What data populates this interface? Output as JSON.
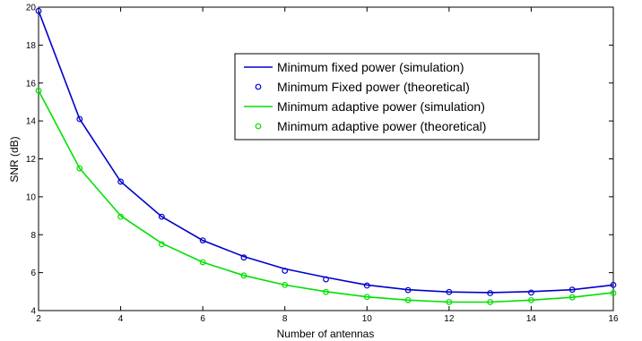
{
  "chart_data": {
    "type": "line",
    "xlabel": "Number of antennas",
    "ylabel": "SNR (dB)",
    "xlim": [
      2,
      16
    ],
    "ylim": [
      4,
      20
    ],
    "xticks": [
      2,
      4,
      6,
      8,
      10,
      12,
      14,
      16
    ],
    "yticks": [
      4,
      6,
      8,
      10,
      12,
      14,
      16,
      18,
      20
    ],
    "grid": false,
    "legend_position": "upper-center",
    "x": [
      2,
      3,
      4,
      5,
      6,
      7,
      8,
      9,
      10,
      11,
      12,
      13,
      14,
      15,
      16
    ],
    "series": [
      {
        "name": "Minimum fixed power (simulation)",
        "style": "line",
        "color": "#0000cc",
        "values": [
          19.8,
          14.1,
          10.8,
          8.95,
          7.7,
          6.85,
          6.2,
          5.75,
          5.35,
          5.1,
          4.98,
          4.95,
          5.0,
          5.1,
          5.35
        ]
      },
      {
        "name": "Minimum Fixed power (theoretical)",
        "style": "marker",
        "color": "#0000cc",
        "values": [
          19.8,
          14.1,
          10.8,
          8.95,
          7.7,
          6.8,
          6.1,
          5.65,
          5.32,
          5.08,
          4.98,
          4.92,
          4.95,
          5.1,
          5.35
        ]
      },
      {
        "name": "Minimum adaptive power (simulation)",
        "style": "line",
        "color": "#00e000",
        "values": [
          15.6,
          11.5,
          9.0,
          7.55,
          6.55,
          5.85,
          5.35,
          5.0,
          4.72,
          4.55,
          4.45,
          4.45,
          4.55,
          4.7,
          4.95
        ]
      },
      {
        "name": "Minimum adaptive power (theoretical)",
        "style": "marker",
        "color": "#00e000",
        "values": [
          15.6,
          11.5,
          8.95,
          7.5,
          6.55,
          5.85,
          5.35,
          4.98,
          4.72,
          4.55,
          4.45,
          4.45,
          4.55,
          4.7,
          4.92
        ]
      }
    ]
  }
}
